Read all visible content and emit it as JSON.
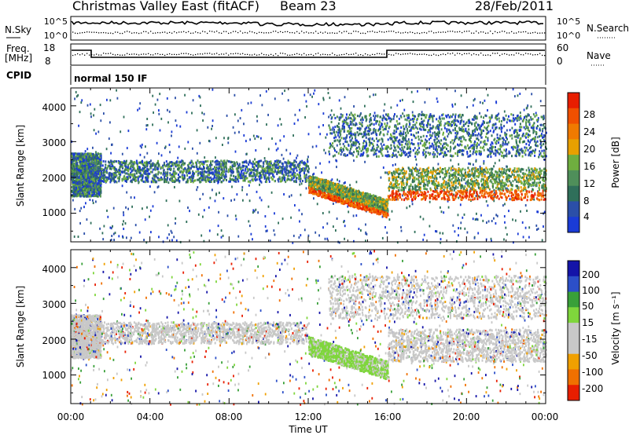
{
  "header": {
    "station": "Christmas Valley East (fitACF)",
    "beam": "Beam 23",
    "date": "28/Feb/2011"
  },
  "top_panels": {
    "nsky_label": "N.Sky",
    "nsky_ticks": [
      "10^5",
      "10^0"
    ],
    "nsearch_label": "N.Search",
    "nsearch_ticks": [
      "10^5",
      "10^0"
    ],
    "freq_label": "Freq.",
    "freq_unit": "[MHz]",
    "freq_ticks": [
      "18",
      "8"
    ],
    "nave_label": "Nave",
    "nave_ticks": [
      "60",
      "0"
    ],
    "cpid_label": "CPID",
    "cpid_value": "normal 150 IF"
  },
  "colors": {
    "power": [
      "#1a3bd6",
      "#2b4fa8",
      "#2f6f5a",
      "#4f8f5a",
      "#6fae3f",
      "#e8a000",
      "#f07a00",
      "#f05000",
      "#e81e00"
    ],
    "velocity": [
      "#1414a8",
      "#2c4fc8",
      "#39a039",
      "#7fd63c",
      "#c8c8c8",
      "#c8c8c8",
      "#f0a000",
      "#f07000",
      "#e81e00"
    ]
  },
  "chart_data": [
    {
      "type": "heatmap",
      "name": "power",
      "ylabel": "Slant Range [km]",
      "yticks": [
        "1000",
        "2000",
        "3000",
        "4000"
      ],
      "ylim": [
        200,
        4500
      ],
      "xlim_hours": [
        0,
        24
      ],
      "colorbar_label": "Power [dB]",
      "colorbar_ticks": [
        "4",
        "8",
        "12",
        "16",
        "20",
        "24",
        "28"
      ],
      "bands": [
        {
          "range_km": [
            1500,
            2700
          ],
          "hours": [
            0,
            1.5
          ],
          "value": "12-16 dB"
        },
        {
          "range_km": [
            1900,
            2500
          ],
          "hours": [
            1.5,
            12
          ],
          "value": "8-16 dB"
        },
        {
          "range_km": [
            900,
            2100
          ],
          "hours": [
            12,
            16
          ],
          "value": "16-28 dB"
        },
        {
          "range_km": [
            1400,
            2300
          ],
          "hours": [
            16,
            24
          ],
          "value": "16-28 dB"
        },
        {
          "range_km": [
            2600,
            3800
          ],
          "hours": [
            13,
            24
          ],
          "value": "4-16 dB"
        }
      ]
    },
    {
      "type": "heatmap",
      "name": "velocity",
      "ylabel": "Slant Range [km]",
      "yticks": [
        "1000",
        "2000",
        "3000",
        "4000"
      ],
      "ylim": [
        200,
        4500
      ],
      "xlim_hours": [
        0,
        24
      ],
      "xlabel": "Time UT",
      "xticks": [
        "00:00",
        "04:00",
        "08:00",
        "12:00",
        "16:00",
        "20:00",
        "00:00"
      ],
      "colorbar_label": "Velocity [m s⁻¹]",
      "colorbar_ticks": [
        "200",
        "100",
        "50",
        "15",
        "-15",
        "-50",
        "-100",
        "-200"
      ],
      "bands": [
        {
          "range_km": [
            1500,
            2700
          ],
          "hours": [
            0,
            1.5
          ],
          "value": "-15 to 15 m/s"
        },
        {
          "range_km": [
            1900,
            2500
          ],
          "hours": [
            1.5,
            12
          ],
          "value": "-15 to 15 m/s"
        },
        {
          "range_km": [
            900,
            2100
          ],
          "hours": [
            12,
            16
          ],
          "value": "15 to 50 m/s"
        },
        {
          "range_km": [
            1400,
            2300
          ],
          "hours": [
            16,
            24
          ],
          "value": "-15 to 15 m/s"
        },
        {
          "range_km": [
            2600,
            3800
          ],
          "hours": [
            13,
            24
          ],
          "value": "-15 to 15 m/s"
        }
      ]
    }
  ]
}
